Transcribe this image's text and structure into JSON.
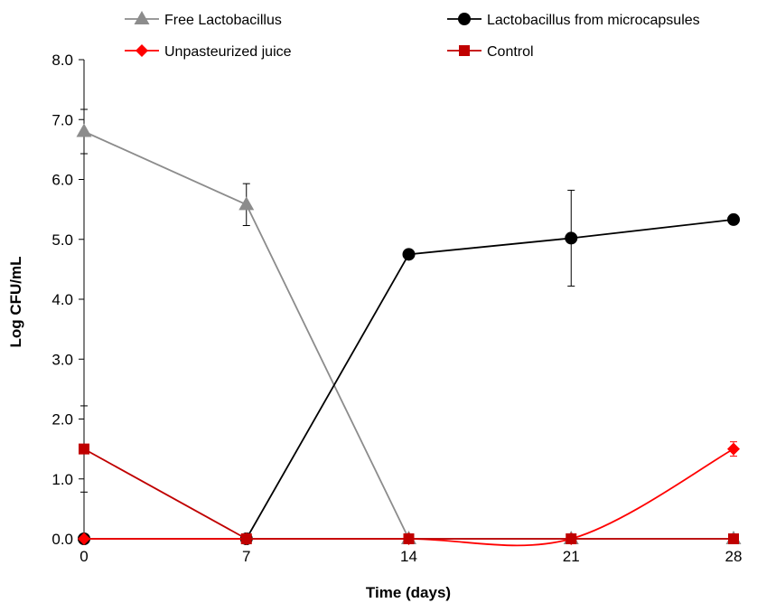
{
  "chart_data": {
    "type": "line",
    "xlabel": "Time (days)",
    "ylabel": "Log CFU/mL",
    "x": [
      0,
      7,
      14,
      21,
      28
    ],
    "xlim": [
      0,
      28
    ],
    "ylim": [
      0,
      8
    ],
    "y_ticks": [
      "0.0",
      "1.0",
      "2.0",
      "3.0",
      "4.0",
      "5.0",
      "6.0",
      "7.0",
      "8.0"
    ],
    "x_ticks": [
      "0",
      "7",
      "14",
      "21",
      "28"
    ],
    "grid": false,
    "legend_position": "top",
    "series": [
      {
        "name": "Free Lactobacillus",
        "marker": "triangle",
        "color": "#8c8c8c",
        "smooth": false,
        "values": [
          6.8,
          5.58,
          0,
          0,
          0
        ],
        "error": [
          0.37,
          0.35,
          0,
          0,
          0
        ]
      },
      {
        "name": "Lactobacillus from microcapsules",
        "marker": "circle",
        "color": "#000000",
        "smooth": false,
        "values": [
          0,
          0,
          4.75,
          5.02,
          5.33
        ],
        "error": [
          0,
          0,
          0,
          0.8,
          0
        ]
      },
      {
        "name": "Unpasteurized juice",
        "marker": "diamond",
        "color": "#ff0000",
        "smooth": true,
        "values": [
          0,
          0,
          0,
          0,
          1.5
        ],
        "error": [
          0,
          0,
          0,
          0,
          0.12
        ]
      },
      {
        "name": "Control",
        "marker": "square",
        "color": "#c00000",
        "smooth": false,
        "values": [
          1.5,
          0,
          0,
          0,
          0
        ],
        "error": [
          0.72,
          0,
          0,
          0,
          0
        ]
      }
    ]
  }
}
